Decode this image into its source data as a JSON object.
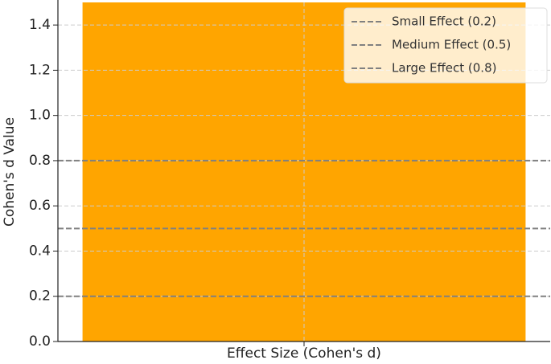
{
  "chart_data": {
    "type": "bar",
    "xlabel": "Effect Size (Cohen's d)",
    "ylabel": "Cohen's d Value",
    "categories": [
      null
    ],
    "values": [
      1.5
    ],
    "color": "#ffa500",
    "ylim": [
      0,
      1.5
    ],
    "yticks": [
      {
        "value": 0,
        "label": "0.0"
      },
      {
        "value": 0.2,
        "label": "0.2"
      },
      {
        "value": 0.4,
        "label": "0.4"
      },
      {
        "value": 0.6,
        "label": "0.6"
      },
      {
        "value": 0.8,
        "label": "0.8"
      },
      {
        "value": 1.0,
        "label": "1.0"
      },
      {
        "value": 1.2,
        "label": "1.2"
      },
      {
        "value": 1.4,
        "label": "1.4"
      }
    ],
    "grid": true,
    "legend": "upper right",
    "lines": [
      {
        "name": "Small Effect (0.2)",
        "value": 0.2,
        "color": "#808080"
      },
      {
        "name": "Medium Effect (0.5)",
        "value": 0.5,
        "color": "#808080"
      },
      {
        "name": "Large Effect (0.8)",
        "value": 0.8,
        "color": "#808080"
      }
    ]
  }
}
